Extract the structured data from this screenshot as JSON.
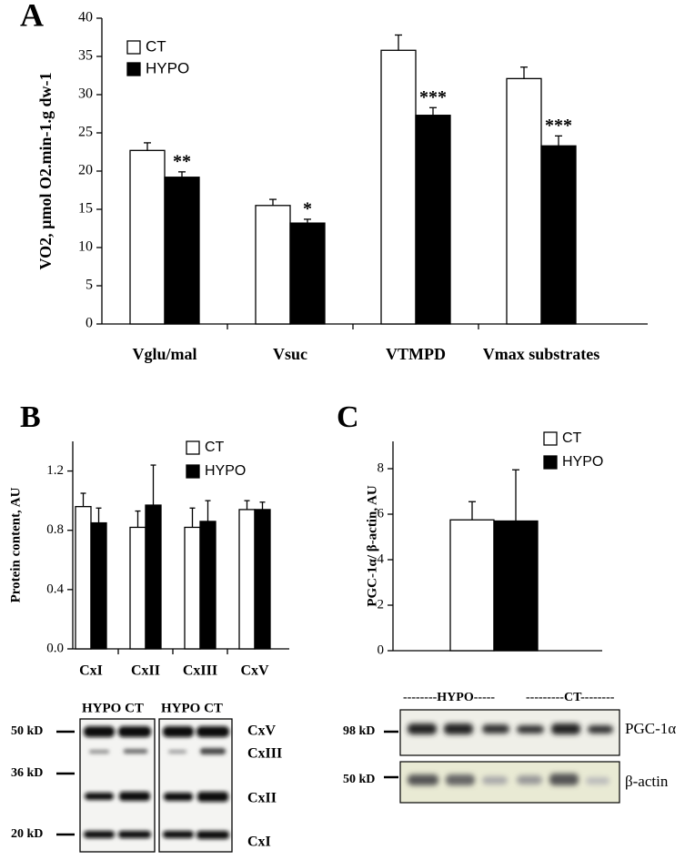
{
  "chart_data": [
    {
      "type": "bar",
      "panel_label": "A",
      "ylabel": "VO2, µmol O2.min-1.g dw-1",
      "categories": [
        "Vglu/mal",
        "Vsuc",
        "VTMPD",
        "Vmax substrates"
      ],
      "series": [
        {
          "name": "CT",
          "color": "#ffffff",
          "values": [
            22.7,
            15.5,
            35.8,
            32.1
          ],
          "errors": [
            1.0,
            0.8,
            2.0,
            1.5
          ]
        },
        {
          "name": "HYPO",
          "color": "#000000",
          "values": [
            19.2,
            13.2,
            27.3,
            23.3
          ],
          "errors": [
            0.7,
            0.5,
            1.0,
            1.3
          ],
          "significance": [
            "**",
            "*",
            "***",
            "***"
          ]
        }
      ],
      "ylim": [
        0,
        40
      ],
      "yticks": [
        0,
        5,
        10,
        15,
        20,
        25,
        30,
        35,
        40
      ],
      "legend": "top-left"
    },
    {
      "type": "bar",
      "panel_label": "B",
      "ylabel": "Protein content, AU",
      "categories": [
        "CxI",
        "CxII",
        "CxIII",
        "CxV"
      ],
      "series": [
        {
          "name": "CT",
          "color": "#ffffff",
          "values": [
            0.96,
            0.82,
            0.82,
            0.94
          ],
          "errors": [
            0.09,
            0.11,
            0.13,
            0.06
          ]
        },
        {
          "name": "HYPO",
          "color": "#000000",
          "values": [
            0.85,
            0.97,
            0.86,
            0.94
          ],
          "errors": [
            0.1,
            0.27,
            0.14,
            0.05
          ]
        }
      ],
      "ylim": [
        0,
        1.4
      ],
      "yticks": [
        {
          "value": 0,
          "label": "0.0"
        },
        0.4,
        0.8,
        1.2
      ],
      "legend": "top-right"
    },
    {
      "type": "bar",
      "panel_label": "C",
      "ylabel": "PGC-1α/ β-actin, AU",
      "categories": [
        null
      ],
      "series": [
        {
          "name": "CT",
          "color": "#ffffff",
          "values": [
            5.75
          ],
          "errors": [
            0.8
          ]
        },
        {
          "name": "HYPO",
          "color": "#000000",
          "values": [
            5.7
          ],
          "errors": [
            2.25
          ]
        }
      ],
      "ylim": [
        0,
        9.2
      ],
      "yticks": [
        0,
        2,
        4,
        6,
        8
      ],
      "legend": "top-right"
    }
  ],
  "blots": {
    "B": {
      "lane_labels": [
        "HYPO CT",
        "HYPO CT"
      ],
      "markers": [
        "50 kD",
        "36 kD",
        "20 kD"
      ],
      "bands": [
        "CxV",
        "CxIII",
        "CxII",
        "CxI"
      ]
    },
    "C": {
      "group_labels": [
        "--------HYPO-----",
        "---------CT--------"
      ],
      "markers": [
        "98 kD",
        "50 kD"
      ],
      "bands": [
        "PGC-1α",
        "β-actin"
      ]
    }
  }
}
